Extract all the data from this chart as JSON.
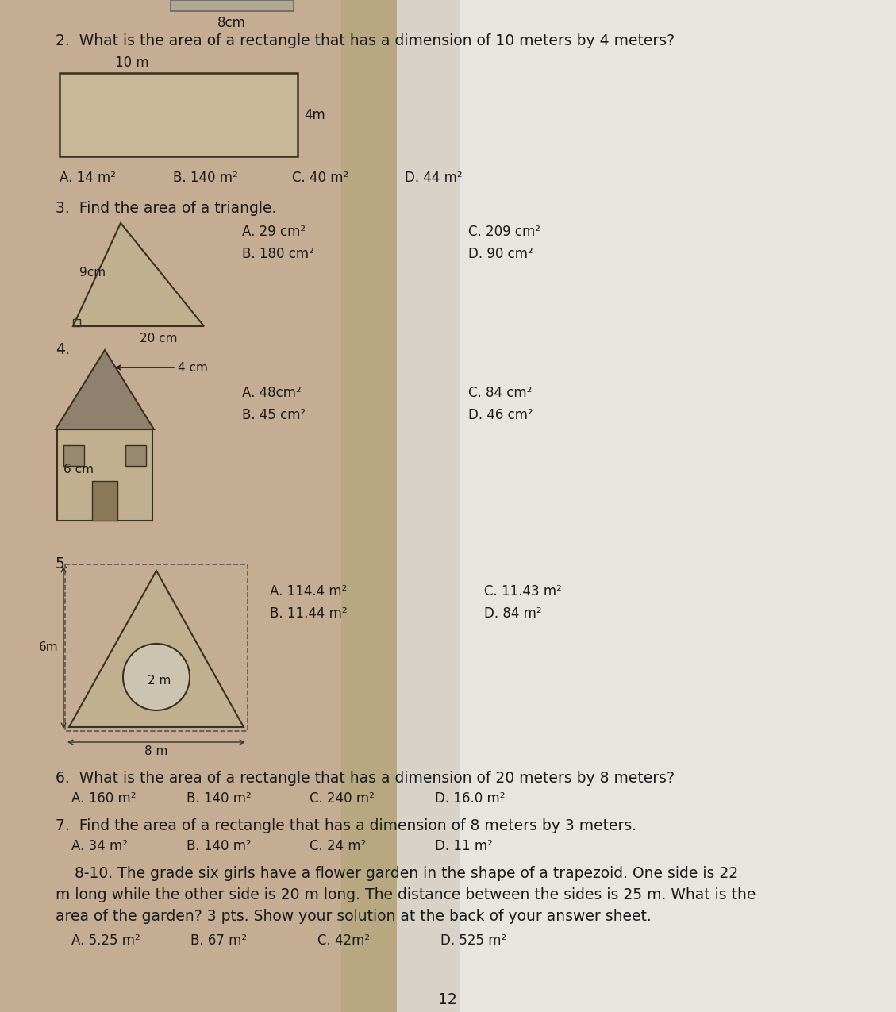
{
  "text_color": "#1a1a1a",
  "title_label": "8cm",
  "q2_text": "2.  What is the area of a rectangle that has a dimension of 10 meters by 4 meters?",
  "q2_dim_top": "10 m",
  "q2_dim_right": "4m",
  "q2_choices": [
    "A. 14 m²",
    "B. 140 m²",
    "C. 40 m²",
    "D. 44 m²"
  ],
  "q3_text": "3.  Find the area of a triangle.",
  "q3_height_label": "9cm",
  "q3_base_label": "20 cm",
  "q3_choices_left": [
    "A. 29 cm²",
    "B. 180 cm²"
  ],
  "q3_choices_right": [
    "C. 209 cm²",
    "D. 90 cm²"
  ],
  "q4_text": "4.",
  "q4_label_arrow": "→4 cm",
  "q4_label_side": "6 cm",
  "q4_choices_left": [
    "A. 48cm²",
    "B. 45 cm²"
  ],
  "q4_choices_right": [
    "C. 84 cm²",
    "D. 46 cm²"
  ],
  "q5_text": "5.",
  "q5_label_r": "2 m",
  "q5_label_h": "6m",
  "q5_label_b": "8 m",
  "q5_choices_left": [
    "A. 114.4 m²",
    "B. 11.44 m²"
  ],
  "q5_choices_right": [
    "C. 11.43 m²",
    "D. 84 m²"
  ],
  "q6_text": "6.  What is the area of a rectangle that has a dimension of 20 meters by 8 meters?",
  "q6_choices": [
    "A. 160 m²",
    "B. 140 m²",
    "C. 240 m²",
    "D. 16.0 m²"
  ],
  "q7_text": "7.  Find the area of a rectangle that has a dimension of 8 meters by 3 meters.",
  "q7_choices": [
    "A. 34 m²",
    "B. 140 m²",
    "C. 24 m²",
    "D. 11 m²"
  ],
  "q810_lines": [
    "    8-10. The grade six girls have a flower garden in the shape of a trapezoid. One side is 22",
    "m long while the other side is 20 m long. The distance between the sides is 25 m. What is the",
    "area of the garden? 3 pts. Show your solution at the back of your answer sheet."
  ],
  "q810_choices": [
    "A. 5.25 m²",
    "B. 67 m²",
    "C. 42m²",
    "D. 525 m²"
  ],
  "page_number": "12",
  "bg_tan": "#c4ad92",
  "bg_mid": "#b8a882",
  "bg_light": "#d8d2c8",
  "bg_white": "#e8e5e0",
  "rect_fill": "#c8b898",
  "shape_edge": "#3a3020",
  "shape_fill": "#c0b090",
  "roof_fill": "#908070",
  "door_fill": "#8a7858",
  "win_fill": "#988870"
}
